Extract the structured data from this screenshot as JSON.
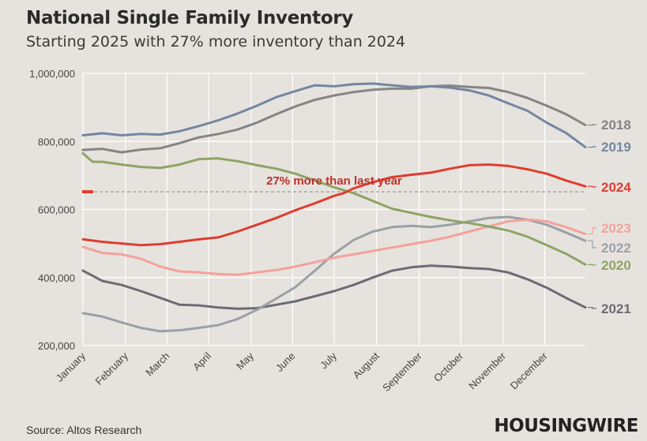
{
  "header": {
    "title": "National Single Family Inventory",
    "subtitle": "Starting 2025 with 27% more inventory than 2024"
  },
  "footer": {
    "source": "Source: Altos Research",
    "brand": "HOUSINGWIRE"
  },
  "colors": {
    "2018": "#858585",
    "2019": "#7486a0",
    "2020": "#8fa366",
    "2021": "#6b6b73",
    "2022": "#9aa0a6",
    "2023": "#f4a19a",
    "2024": "#e03c31",
    "grid": "#ffffff",
    "annotation": "#c0302a"
  },
  "chart_data": {
    "type": "line",
    "title": "National Single Family Inventory",
    "subtitle": "Starting 2025 with 27% more inventory than 2024",
    "x_unit": "week",
    "x_range": [
      0,
      52
    ],
    "ylim": [
      200000,
      1000000
    ],
    "yticks": [
      200000,
      400000,
      600000,
      800000,
      1000000
    ],
    "ytick_labels": [
      "200,000",
      "400,000",
      "600,000",
      "800,000",
      "1,000,000"
    ],
    "month_labels": [
      "January",
      "February",
      "March",
      "April",
      "May",
      "June",
      "July",
      "August",
      "September",
      "October",
      "November",
      "December"
    ],
    "month_weeks": [
      0,
      4.4,
      8.7,
      13.0,
      17.4,
      21.7,
      26.0,
      30.4,
      34.8,
      39.1,
      43.5,
      47.8
    ],
    "grid": true,
    "series": [
      {
        "name": "2018",
        "weeks": [
          0,
          2,
          4,
          6,
          8,
          10,
          12,
          14,
          16,
          18,
          20,
          22,
          24,
          26,
          28,
          30,
          32,
          34,
          36,
          38,
          40,
          42,
          44,
          46,
          48,
          50,
          52
        ],
        "values": [
          775000,
          778000,
          768000,
          776000,
          780000,
          795000,
          812000,
          822000,
          835000,
          855000,
          880000,
          903000,
          922000,
          935000,
          945000,
          952000,
          955000,
          955000,
          962000,
          964000,
          960000,
          957000,
          945000,
          928000,
          905000,
          880000,
          848000
        ]
      },
      {
        "name": "2019",
        "weeks": [
          0,
          2,
          4,
          6,
          8,
          10,
          12,
          14,
          16,
          18,
          20,
          22,
          24,
          26,
          28,
          30,
          32,
          34,
          36,
          38,
          40,
          42,
          44,
          46,
          48,
          50,
          52
        ],
        "values": [
          818000,
          824000,
          818000,
          822000,
          820000,
          830000,
          845000,
          862000,
          882000,
          905000,
          930000,
          948000,
          965000,
          962000,
          968000,
          970000,
          965000,
          960000,
          962000,
          958000,
          950000,
          935000,
          912000,
          890000,
          855000,
          825000,
          783000
        ]
      },
      {
        "name": "2020",
        "weeks": [
          0,
          1,
          2,
          4,
          6,
          8,
          10,
          12,
          14,
          16,
          18,
          20,
          22,
          24,
          26,
          28,
          30,
          32,
          34,
          36,
          38,
          40,
          42,
          44,
          46,
          48,
          50,
          52
        ],
        "values": [
          765000,
          740000,
          740000,
          732000,
          725000,
          722000,
          732000,
          748000,
          750000,
          742000,
          730000,
          720000,
          705000,
          685000,
          665000,
          648000,
          625000,
          602000,
          590000,
          578000,
          568000,
          560000,
          550000,
          538000,
          520000,
          495000,
          470000,
          438000
        ]
      },
      {
        "name": "2021",
        "weeks": [
          0,
          2,
          4,
          6,
          8,
          10,
          12,
          14,
          16,
          18,
          20,
          22,
          24,
          26,
          28,
          30,
          32,
          34,
          36,
          38,
          40,
          42,
          44,
          46,
          48,
          50,
          52
        ],
        "values": [
          420000,
          390000,
          378000,
          360000,
          340000,
          320000,
          318000,
          312000,
          308000,
          310000,
          320000,
          330000,
          345000,
          360000,
          378000,
          400000,
          420000,
          430000,
          435000,
          432000,
          428000,
          425000,
          415000,
          395000,
          370000,
          340000,
          312000
        ]
      },
      {
        "name": "2022",
        "weeks": [
          0,
          2,
          4,
          6,
          8,
          10,
          12,
          14,
          16,
          18,
          20,
          22,
          24,
          26,
          28,
          30,
          32,
          34,
          36,
          38,
          40,
          42,
          44,
          46,
          48,
          50,
          52
        ],
        "values": [
          295000,
          285000,
          268000,
          252000,
          242000,
          245000,
          252000,
          260000,
          278000,
          305000,
          338000,
          372000,
          420000,
          470000,
          510000,
          535000,
          548000,
          552000,
          548000,
          555000,
          565000,
          575000,
          578000,
          570000,
          555000,
          532000,
          508000
        ]
      },
      {
        "name": "2023",
        "weeks": [
          0,
          2,
          4,
          6,
          8,
          10,
          12,
          14,
          16,
          18,
          20,
          22,
          24,
          26,
          28,
          30,
          32,
          34,
          36,
          38,
          40,
          42,
          44,
          46,
          48,
          50,
          52
        ],
        "values": [
          490000,
          472000,
          468000,
          455000,
          432000,
          418000,
          415000,
          410000,
          408000,
          415000,
          422000,
          432000,
          445000,
          458000,
          468000,
          478000,
          488000,
          498000,
          508000,
          520000,
          535000,
          550000,
          565000,
          570000,
          565000,
          548000,
          528000
        ]
      },
      {
        "name": "2024",
        "weeks": [
          0,
          2,
          4,
          6,
          8,
          10,
          12,
          14,
          16,
          18,
          20,
          22,
          24,
          26,
          27,
          28,
          30,
          32,
          34,
          36,
          38,
          40,
          42,
          44,
          46,
          48,
          50,
          52
        ],
        "values": [
          512000,
          505000,
          500000,
          495000,
          498000,
          505000,
          512000,
          518000,
          535000,
          555000,
          575000,
          598000,
          618000,
          640000,
          648000,
          662000,
          680000,
          695000,
          702000,
          708000,
          720000,
          730000,
          732000,
          728000,
          718000,
          705000,
          685000,
          668000
        ]
      }
    ],
    "reference_line": {
      "value": 652000,
      "label": "27% more than last year",
      "style": "dashed"
    },
    "start_marker": {
      "value": 652000,
      "week": 0
    },
    "annotation": "27% more than last year"
  }
}
